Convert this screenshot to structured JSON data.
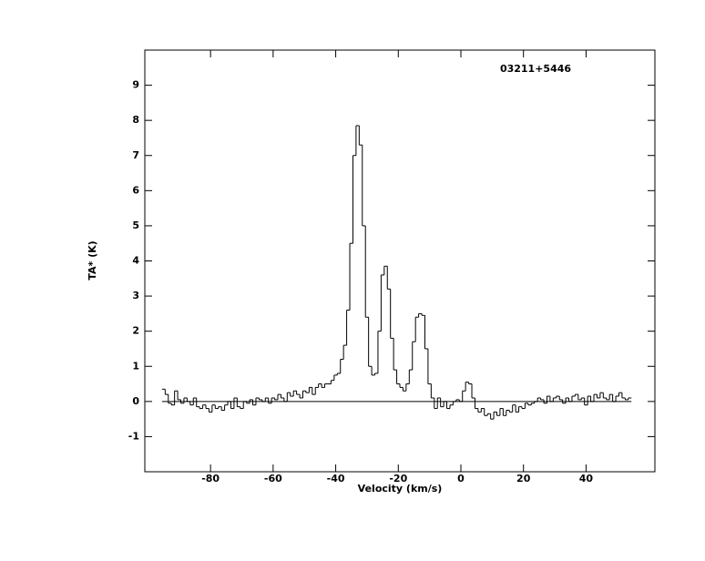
{
  "chart_data": {
    "type": "step",
    "annotation": "03211+5446",
    "xlabel": "Velocity (km/s)",
    "ylabel": "TA* (K)",
    "xlim": [
      -101,
      62
    ],
    "ylim": [
      -2,
      10
    ],
    "xticks": [
      -80,
      -60,
      -40,
      -20,
      0,
      20,
      40
    ],
    "yticks": [
      -1,
      0,
      1,
      2,
      3,
      4,
      5,
      6,
      7,
      8,
      9
    ],
    "color": "#000000",
    "x": [
      -95,
      -94,
      -93,
      -92,
      -91,
      -90,
      -89,
      -88,
      -87,
      -86,
      -85,
      -84,
      -83,
      -82,
      -81,
      -80,
      -79,
      -78,
      -77,
      -76,
      -75,
      -74,
      -73,
      -72,
      -71,
      -70,
      -69,
      -68,
      -67,
      -66,
      -65,
      -64,
      -63,
      -62,
      -61,
      -60,
      -59,
      -58,
      -57,
      -56,
      -55,
      -54,
      -53,
      -52,
      -51,
      -50,
      -49,
      -48,
      -47,
      -46,
      -45,
      -44,
      -43,
      -42,
      -41,
      -40,
      -39,
      -38,
      -37,
      -36,
      -35,
      -34,
      -33,
      -32,
      -31,
      -30,
      -29,
      -28,
      -27,
      -26,
      -25,
      -24,
      -23,
      -22,
      -21,
      -20,
      -19,
      -18,
      -17,
      -16,
      -15,
      -14,
      -13,
      -12,
      -11,
      -10,
      -9,
      -8,
      -7,
      -6,
      -5,
      -4,
      -3,
      -2,
      -1,
      0,
      1,
      2,
      3,
      4,
      5,
      6,
      7,
      8,
      9,
      10,
      11,
      12,
      13,
      14,
      15,
      16,
      17,
      18,
      19,
      20,
      21,
      22,
      23,
      24,
      25,
      26,
      27,
      28,
      29,
      30,
      31,
      32,
      33,
      34,
      35,
      36,
      37,
      38,
      39,
      40,
      41,
      42,
      43,
      44,
      45,
      46,
      47,
      48,
      49,
      50,
      51,
      52,
      53,
      54
    ],
    "values": [
      0.35,
      0.2,
      -0.05,
      -0.1,
      0.3,
      0.05,
      -0.05,
      0.1,
      0.0,
      -0.1,
      0.1,
      -0.15,
      -0.2,
      -0.1,
      -0.2,
      -0.3,
      -0.1,
      -0.2,
      -0.15,
      -0.25,
      -0.1,
      0.0,
      -0.2,
      0.1,
      -0.15,
      -0.2,
      0.0,
      -0.05,
      0.05,
      -0.1,
      0.1,
      0.05,
      0.0,
      0.1,
      -0.05,
      0.1,
      0.05,
      0.2,
      0.1,
      0.0,
      0.25,
      0.15,
      0.3,
      0.2,
      0.1,
      0.3,
      0.25,
      0.4,
      0.2,
      0.4,
      0.5,
      0.4,
      0.5,
      0.5,
      0.6,
      0.75,
      0.8,
      1.2,
      1.6,
      2.6,
      4.5,
      7.0,
      7.85,
      7.3,
      5.0,
      2.4,
      1.0,
      0.75,
      0.8,
      2.0,
      3.6,
      3.85,
      3.2,
      1.8,
      0.9,
      0.5,
      0.4,
      0.3,
      0.5,
      0.9,
      1.7,
      2.4,
      2.5,
      2.45,
      1.5,
      0.5,
      0.1,
      -0.2,
      0.1,
      -0.15,
      0.0,
      -0.2,
      -0.1,
      0.0,
      0.05,
      0.0,
      0.3,
      0.55,
      0.5,
      0.1,
      -0.2,
      -0.3,
      -0.2,
      -0.4,
      -0.35,
      -0.5,
      -0.3,
      -0.4,
      -0.2,
      -0.4,
      -0.25,
      -0.3,
      -0.1,
      -0.3,
      -0.15,
      -0.2,
      -0.05,
      -0.1,
      -0.05,
      0.0,
      0.1,
      0.05,
      -0.05,
      0.15,
      0.0,
      0.1,
      0.15,
      0.05,
      -0.05,
      0.1,
      0.0,
      0.15,
      0.2,
      0.05,
      0.1,
      -0.1,
      0.15,
      0.0,
      0.2,
      0.1,
      0.25,
      0.1,
      0.05,
      0.2,
      0.0,
      0.15,
      0.25,
      0.1,
      0.05,
      0.1
    ]
  }
}
